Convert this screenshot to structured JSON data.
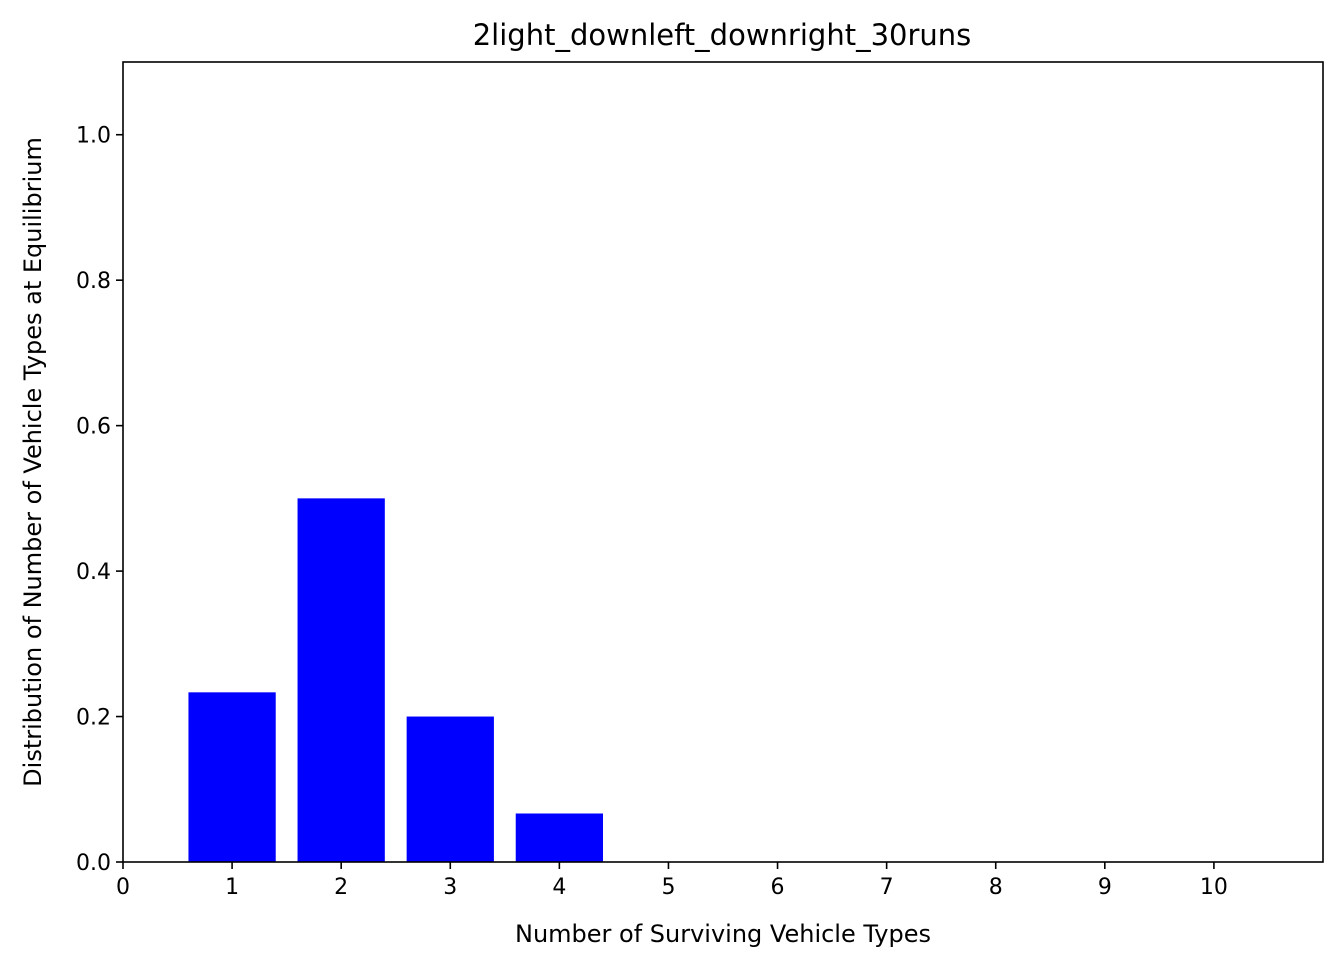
{
  "chart_data": {
    "type": "bar",
    "title": "2light_downleft_downright_30runs",
    "xlabel": "Number of Surviving Vehicle Types",
    "ylabel": "Distribution of Number of Vehicle Types at Equilibrium",
    "categories": [
      1,
      2,
      3,
      4,
      5,
      6,
      7,
      8,
      9,
      10
    ],
    "values": [
      0.2333,
      0.5,
      0.2,
      0.0667,
      0,
      0,
      0,
      0,
      0,
      0
    ],
    "bar_width": 0.8,
    "bar_color": "#0000ff",
    "xlim": [
      0,
      11
    ],
    "ylim": [
      0,
      1.1
    ],
    "xticks": [
      "0",
      "1",
      "2",
      "3",
      "4",
      "5",
      "6",
      "7",
      "8",
      "9",
      "10"
    ],
    "yticks": [
      "0.0",
      "0.2",
      "0.4",
      "0.6",
      "0.8",
      "1.0"
    ],
    "grid": false,
    "legend": "none"
  }
}
